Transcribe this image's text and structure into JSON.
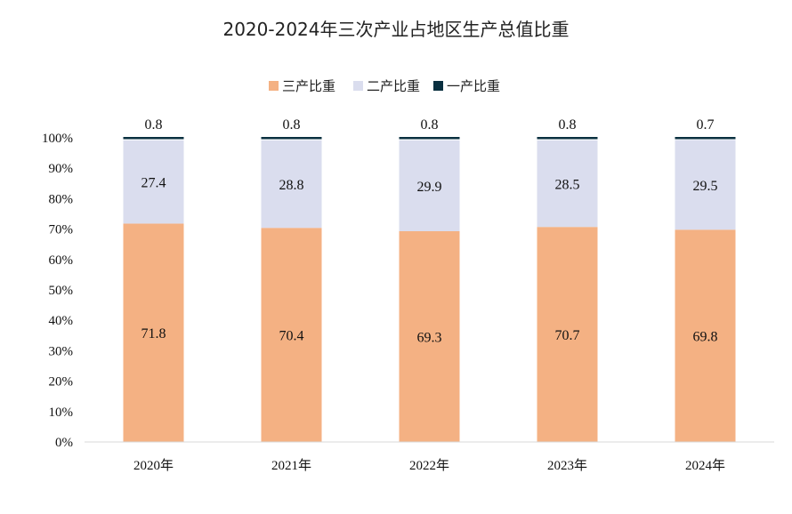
{
  "chart_data": {
    "type": "bar",
    "stacked": true,
    "title": "2020-2024年三次产业占地区生产总值比重",
    "categories": [
      "2020年",
      "2021年",
      "2022年",
      "2023年",
      "2024年"
    ],
    "series": [
      {
        "name": "三产比重",
        "values": [
          71.8,
          70.4,
          69.3,
          70.7,
          69.8
        ],
        "color": "#F4B183"
      },
      {
        "name": "二产比重",
        "values": [
          27.4,
          28.8,
          29.9,
          28.5,
          29.5
        ],
        "color": "#DADDEE"
      },
      {
        "name": "一产比重",
        "values": [
          0.8,
          0.8,
          0.8,
          0.8,
          0.7
        ],
        "color": "#0A3040"
      }
    ],
    "yticks": [
      "0%",
      "10%",
      "20%",
      "30%",
      "40%",
      "50%",
      "60%",
      "70%",
      "80%",
      "90%",
      "100%"
    ],
    "ylim": [
      0,
      100
    ],
    "legend": "top",
    "grid": false
  }
}
